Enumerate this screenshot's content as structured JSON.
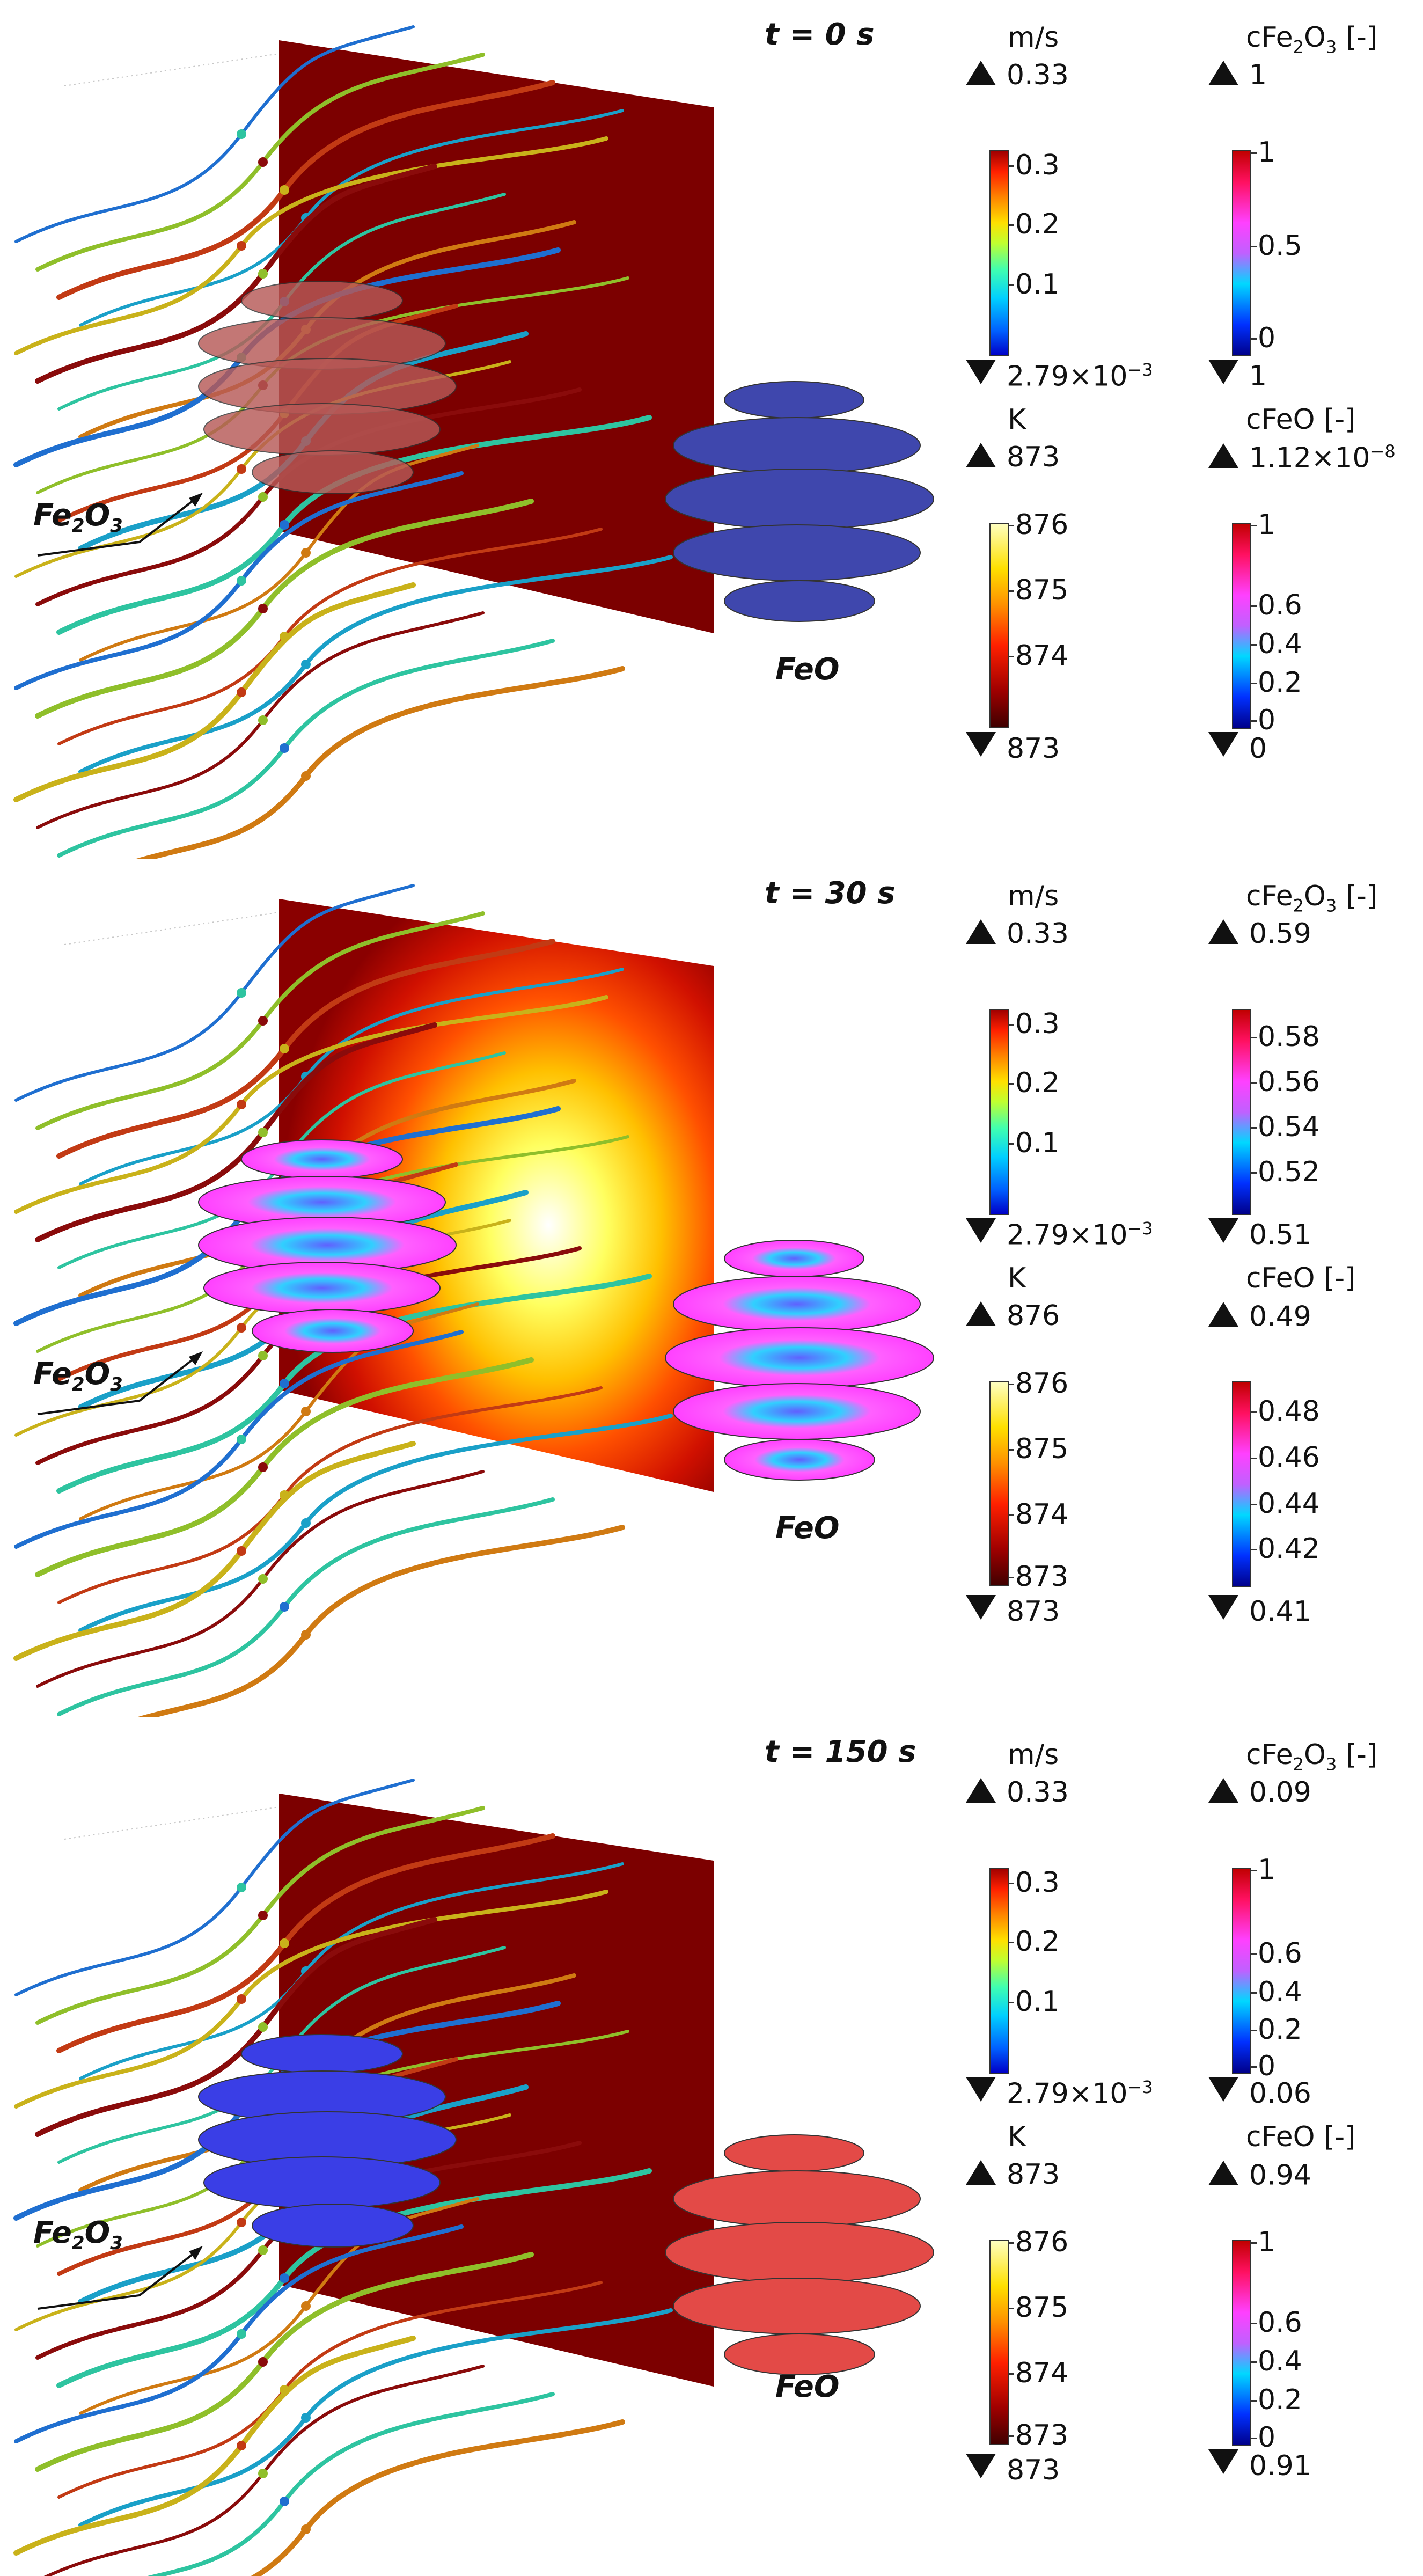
{
  "panels": [
    {
      "time": "t = 0 s",
      "plane": "uniform",
      "fe2o3_color": "#b75a57",
      "feo_color": "#3f47ad",
      "fe2o3_pattern": "uniform",
      "feo_pattern": "uniform",
      "fe2o3_label": "Fe",
      "fe2o3_sub1": "2",
      "fe2o3_mid": "O",
      "fe2o3_sub2": "3",
      "feo_label": "FeO",
      "legends": {
        "velocity": {
          "unit": "m/s",
          "max": "0.33",
          "min_base": "2.79×10",
          "min_exp": "−3",
          "ticks": [
            "0.3",
            "0.2",
            "0.1"
          ]
        },
        "temperature": {
          "unit": "K",
          "max": "873",
          "min": "873",
          "ticks": [
            "876",
            "875",
            "874"
          ]
        },
        "c_fe2o3": {
          "unit_pre": "cFe",
          "unit_sub1": "2",
          "unit_mid": "O",
          "unit_sub2": "3",
          "unit_post": " [-]",
          "max": "1",
          "min": "1",
          "ticks": [
            "1",
            "0.5",
            "0"
          ]
        },
        "c_feo": {
          "unit": "cFeO [-]",
          "max_base": "1.12×10",
          "max_exp": "−8",
          "min": "0",
          "ticks": [
            "1",
            "0.6",
            "0.4",
            "0.2",
            "0"
          ]
        }
      }
    },
    {
      "time": "t = 30 s",
      "plane": "hot",
      "fe2o3_color": "#ff40ff",
      "feo_color": "#ff40ff",
      "fe2o3_pattern": "mixed",
      "feo_pattern": "mixed",
      "fe2o3_label": "Fe",
      "fe2o3_sub1": "2",
      "fe2o3_mid": "O",
      "fe2o3_sub2": "3",
      "feo_label": "FeO",
      "legends": {
        "velocity": {
          "unit": "m/s",
          "max": "0.33",
          "min_base": "2.79×10",
          "min_exp": "−3",
          "ticks": [
            "0.3",
            "0.2",
            "0.1"
          ]
        },
        "temperature": {
          "unit": "K",
          "max": "876",
          "min": "873",
          "ticks": [
            "876",
            "875",
            "874",
            "873"
          ]
        },
        "c_fe2o3": {
          "unit_pre": "cFe",
          "unit_sub1": "2",
          "unit_mid": "O",
          "unit_sub2": "3",
          "unit_post": " [-]",
          "max": "0.59",
          "min": "0.51",
          "ticks": [
            "0.58",
            "0.56",
            "0.54",
            "0.52"
          ]
        },
        "c_feo": {
          "unit": "cFeO [-]",
          "max_base": "0.49",
          "max_exp": "",
          "min": "0.41",
          "ticks": [
            "0.48",
            "0.46",
            "0.44",
            "0.42"
          ]
        }
      }
    },
    {
      "time": "t = 150 s",
      "plane": "uniform",
      "fe2o3_color": "#3a3ee6",
      "feo_color": "#e34a47",
      "fe2o3_pattern": "uniform",
      "feo_pattern": "uniform",
      "fe2o3_label": "Fe",
      "fe2o3_sub1": "2",
      "fe2o3_mid": "O",
      "fe2o3_sub2": "3",
      "feo_label": "FeO",
      "legends": {
        "velocity": {
          "unit": "m/s",
          "max": "0.33",
          "min_base": "2.79×10",
          "min_exp": "−3",
          "ticks": [
            "0.3",
            "0.2",
            "0.1"
          ]
        },
        "temperature": {
          "unit": "K",
          "max": "873",
          "min": "873",
          "ticks": [
            "876",
            "875",
            "874",
            "873"
          ]
        },
        "c_fe2o3": {
          "unit_pre": "cFe",
          "unit_sub1": "2",
          "unit_mid": "O",
          "unit_sub2": "3",
          "unit_post": " [-]",
          "max": "0.09",
          "min": "0.06",
          "ticks": [
            "1",
            "0.6",
            "0.4",
            "0.2",
            "0"
          ]
        },
        "c_feo": {
          "unit": "cFeO [-]",
          "max_base": "0.94",
          "max_exp": "",
          "min": "0.91",
          "ticks": [
            "1",
            "0.6",
            "0.4",
            "0.2",
            "0"
          ]
        }
      }
    }
  ],
  "colors": {
    "plane_dark": "#7c0000",
    "streamline_palette": [
      "#1f6fd0",
      "#1aa0c8",
      "#2ec4a0",
      "#8fbf2a",
      "#c9b21a",
      "#d07a12",
      "#c23a14",
      "#8a0b0b"
    ]
  }
}
